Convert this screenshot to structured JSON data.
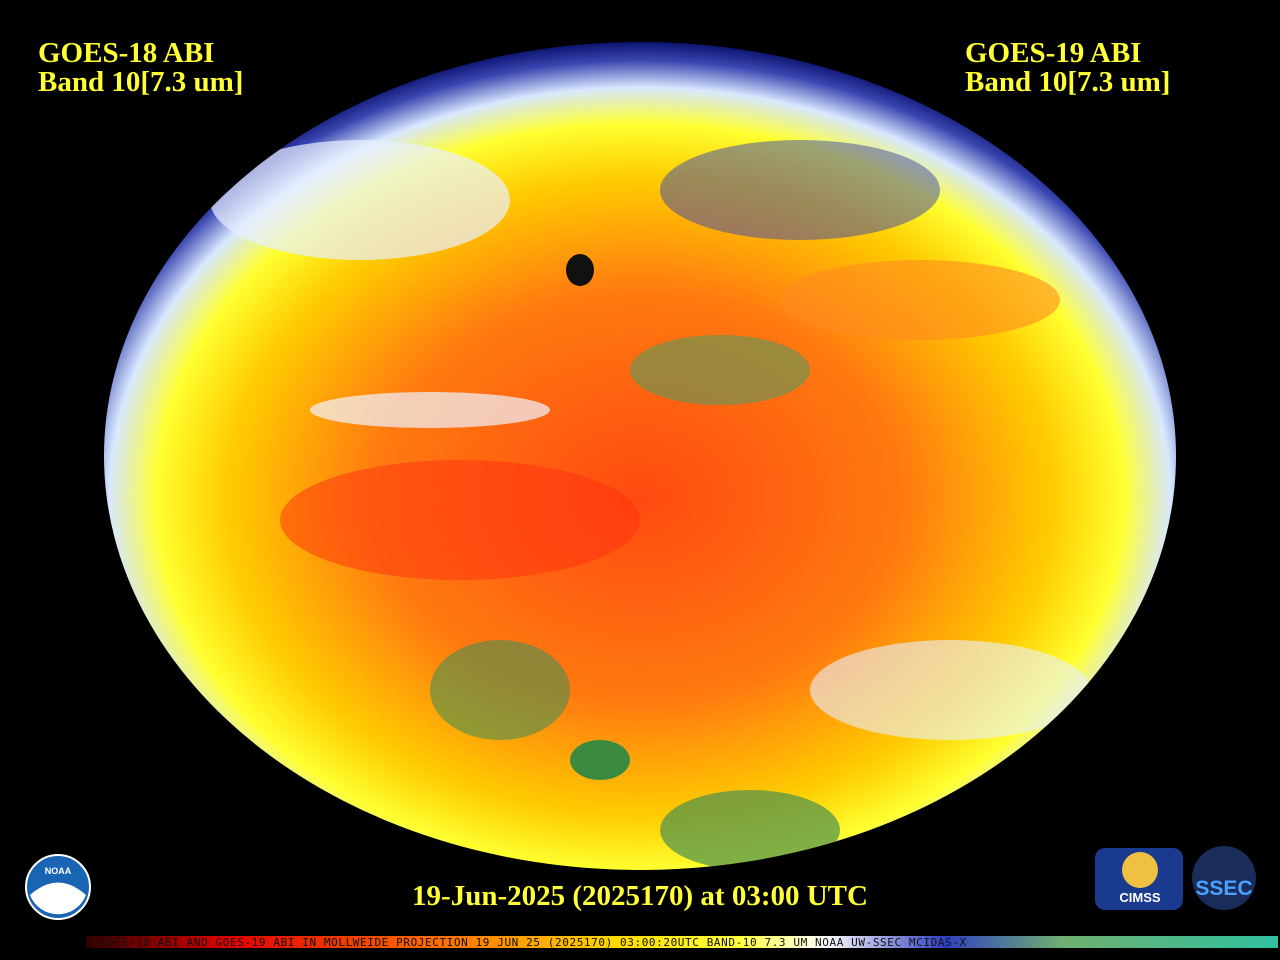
{
  "header": {
    "left": {
      "satellite": "GOES-18 ABI",
      "band": "Band 10[7.3 um]"
    },
    "right": {
      "satellite": "GOES-19 ABI",
      "band": "Band 10[7.3 um]"
    }
  },
  "timestamp": "19-Jun-2025 (2025170) at 03:00 UTC",
  "colorbar_caption": "GOES-18 ABI AND GOES-19 ABI IN MOLLWEIDE PROJECTION 19 JUN 25 (2025170) 03:00:20UTC BAND-10 7.3 UM NOAA UW-SSEC MCIDAS-X",
  "logos": {
    "noaa": "NOAA",
    "cimss": "CIMSS",
    "ssec": "SSEC"
  }
}
